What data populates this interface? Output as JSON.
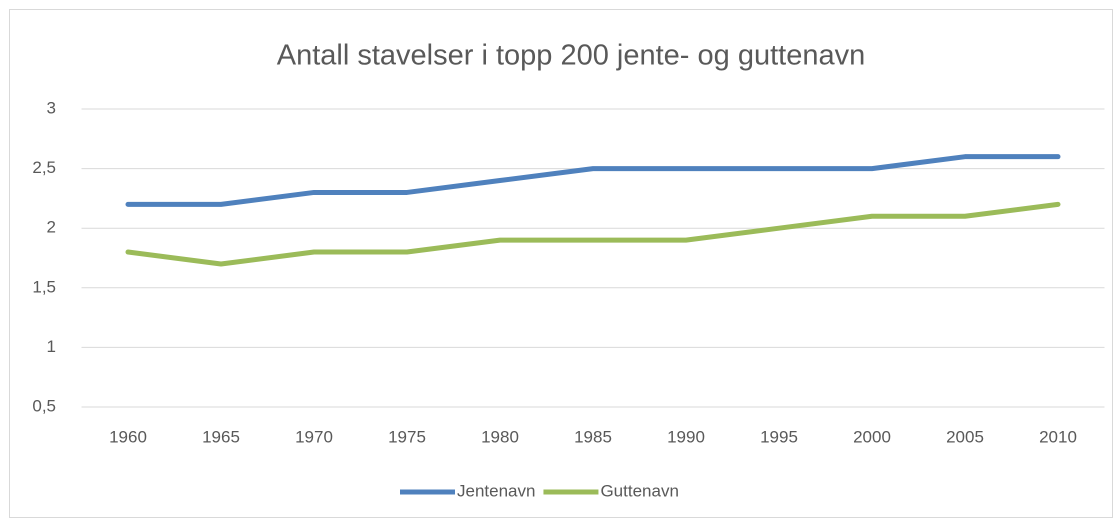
{
  "chart_data": {
    "type": "line",
    "title": "Antall stavelser i topp 200 jente- og guttenavn",
    "categories": [
      "1960",
      "1965",
      "1970",
      "1975",
      "1980",
      "1985",
      "1990",
      "1995",
      "2000",
      "2005",
      "2010"
    ],
    "series": [
      {
        "name": "Jentenavn",
        "color": "#4f81bd",
        "values": [
          2.2,
          2.2,
          2.3,
          2.3,
          2.4,
          2.5,
          2.5,
          2.5,
          2.5,
          2.6,
          2.6
        ]
      },
      {
        "name": "Guttenavn",
        "color": "#9bbb59",
        "values": [
          1.8,
          1.7,
          1.8,
          1.8,
          1.9,
          1.9,
          1.9,
          2.0,
          2.1,
          2.1,
          2.2
        ]
      }
    ],
    "ylim": [
      0.5,
      3
    ],
    "yticks": [
      {
        "value": 0.5,
        "label": "0,5"
      },
      1,
      {
        "value": 1.5,
        "label": "1,5"
      },
      2,
      {
        "value": 2.5,
        "label": "2,5"
      },
      3
    ],
    "grid": true,
    "legend": "bottom"
  }
}
